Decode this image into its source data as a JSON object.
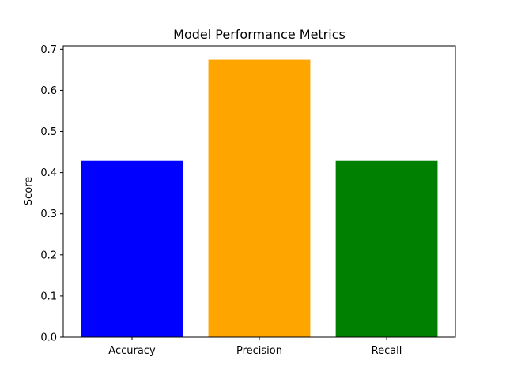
{
  "chart_data": {
    "type": "bar",
    "title": "Model Performance Metrics",
    "xlabel": "",
    "ylabel": "Score",
    "categories": [
      "Accuracy",
      "Precision",
      "Recall"
    ],
    "values": [
      0.4286,
      0.6746,
      0.4286
    ],
    "colors": [
      "#0000ff",
      "#ffa500",
      "#008000"
    ],
    "ylim": [
      0,
      0.7
    ],
    "yticks": [
      0.0,
      0.1,
      0.2,
      0.3,
      0.4,
      0.5,
      0.6,
      0.7
    ],
    "ytick_labels": [
      "0.0",
      "0.1",
      "0.2",
      "0.3",
      "0.4",
      "0.5",
      "0.6",
      "0.7"
    ],
    "grid": false,
    "legend": "none"
  }
}
